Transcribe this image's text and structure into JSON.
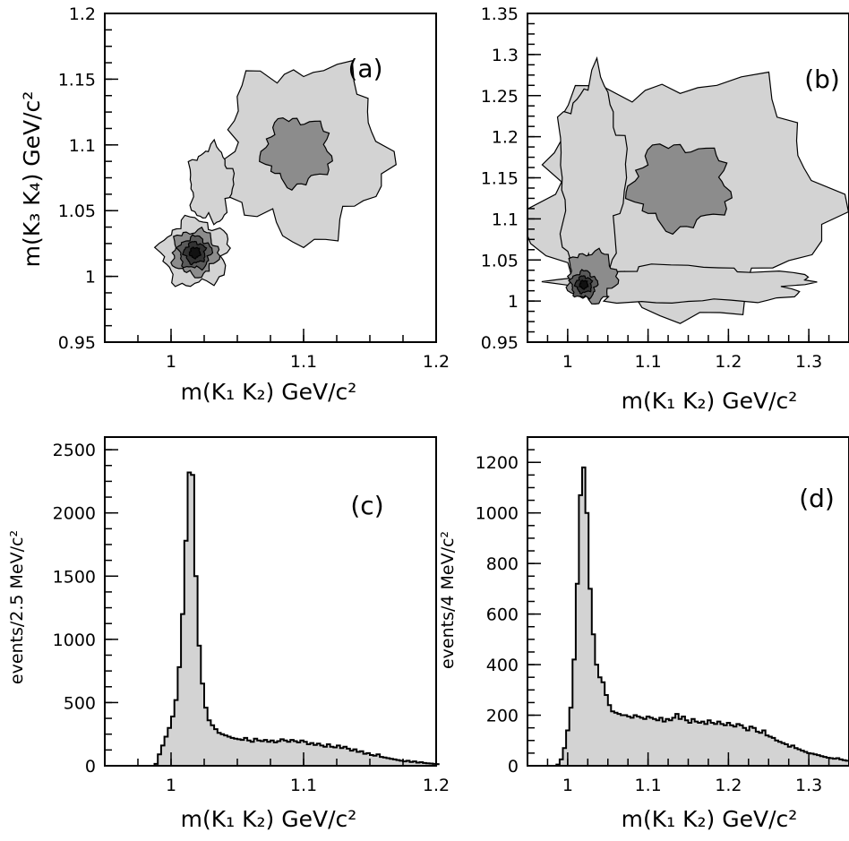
{
  "chart_data": [
    {
      "id": "a",
      "type": "contour",
      "tag": "(a)",
      "xlabel": "m(K₁ K₂) GeV/c²",
      "ylabel": "m(K₃ K₄) GeV/c²",
      "xlim": [
        0.95,
        1.2
      ],
      "ylim": [
        0.95,
        1.2
      ],
      "xticks": [
        1.0,
        1.1,
        1.2
      ],
      "xtick_labels": [
        "1",
        "1.1",
        "1.2"
      ],
      "yticks": [
        0.95,
        1.0,
        1.05,
        1.1,
        1.15,
        1.2
      ],
      "ytick_labels": [
        "0.95",
        "1",
        "1.05",
        "1.1",
        "1.15",
        "1.2"
      ],
      "xminor": 0.025,
      "yminor": 0.0125,
      "shading": [
        "#d3d3d3",
        "#8c8c8c",
        "#5a5a5a",
        "#333333",
        "#111111"
      ],
      "blobs": [
        {
          "cx": 1.1,
          "cy": 1.095,
          "rx": 0.06,
          "ry": 0.065,
          "level": 0
        },
        {
          "cx": 1.03,
          "cy": 1.07,
          "rx": 0.016,
          "ry": 0.028,
          "level": 0
        },
        {
          "cx": 1.018,
          "cy": 1.018,
          "rx": 0.025,
          "ry": 0.025,
          "level": 0
        },
        {
          "cx": 1.095,
          "cy": 1.095,
          "rx": 0.025,
          "ry": 0.025,
          "level": 1
        },
        {
          "cx": 1.018,
          "cy": 1.018,
          "rx": 0.017,
          "ry": 0.017,
          "level": 1
        },
        {
          "cx": 1.018,
          "cy": 1.018,
          "rx": 0.012,
          "ry": 0.012,
          "level": 2
        },
        {
          "cx": 1.018,
          "cy": 1.018,
          "rx": 0.008,
          "ry": 0.008,
          "level": 3
        },
        {
          "cx": 1.018,
          "cy": 1.018,
          "rx": 0.004,
          "ry": 0.004,
          "level": 4
        }
      ]
    },
    {
      "id": "b",
      "type": "contour",
      "tag": "(b)",
      "xlabel": "m(K₁ K₂) GeV/c²",
      "ylabel": "",
      "xlim": [
        0.95,
        1.35
      ],
      "ylim": [
        0.95,
        1.35
      ],
      "xticks": [
        1.0,
        1.1,
        1.2,
        1.3
      ],
      "xtick_labels": [
        "1",
        "1.1",
        "1.2",
        "1.3"
      ],
      "yticks": [
        0.95,
        1.0,
        1.05,
        1.1,
        1.15,
        1.2,
        1.25,
        1.3,
        1.35
      ],
      "ytick_labels": [
        "0.95",
        "1",
        "1.05",
        "1.1",
        "1.15",
        "1.2",
        "1.25",
        "1.3",
        "1.35"
      ],
      "xminor": 0.025,
      "yminor": 0.0125,
      "shading": [
        "#d3d3d3",
        "#8c8c8c",
        "#5a5a5a",
        "#333333",
        "#111111"
      ],
      "blobs": [
        {
          "cx": 1.14,
          "cy": 1.13,
          "rx": 0.18,
          "ry": 0.14,
          "level": 0
        },
        {
          "cx": 1.03,
          "cy": 1.15,
          "rx": 0.04,
          "ry": 0.12,
          "level": 0
        },
        {
          "cx": 1.15,
          "cy": 1.02,
          "rx": 0.15,
          "ry": 0.022,
          "level": 0
        },
        {
          "cx": 1.14,
          "cy": 1.14,
          "rx": 0.06,
          "ry": 0.05,
          "level": 1
        },
        {
          "cx": 1.03,
          "cy": 1.03,
          "rx": 0.03,
          "ry": 0.03,
          "level": 1
        },
        {
          "cx": 1.02,
          "cy": 1.02,
          "rx": 0.016,
          "ry": 0.016,
          "level": 2
        },
        {
          "cx": 1.02,
          "cy": 1.02,
          "rx": 0.01,
          "ry": 0.01,
          "level": 3
        },
        {
          "cx": 1.02,
          "cy": 1.02,
          "rx": 0.005,
          "ry": 0.005,
          "level": 4
        }
      ]
    },
    {
      "id": "c",
      "type": "histogram",
      "tag": "(c)",
      "xlabel": "m(K₁ K₂) GeV/c²",
      "ylabel": "events/2.5 MeV/c²",
      "xlim": [
        0.95,
        1.2
      ],
      "ylim": [
        0,
        2600
      ],
      "xticks": [
        1.0,
        1.1,
        1.2
      ],
      "xtick_labels": [
        "1",
        "1.1",
        "1.2"
      ],
      "yticks": [
        0,
        500,
        1000,
        1500,
        2000,
        2500
      ],
      "ytick_labels": [
        "0",
        "500",
        "1000",
        "1500",
        "2000",
        "2500"
      ],
      "xminor": 0.025,
      "yminor": 125,
      "fill": "#d3d3d3",
      "bin_start": 0.95,
      "bin_width": 0.0025,
      "counts": [
        0,
        0,
        0,
        0,
        0,
        0,
        0,
        0,
        0,
        0,
        0,
        0,
        0,
        0,
        0,
        15,
        90,
        160,
        230,
        300,
        390,
        520,
        780,
        1200,
        1780,
        2320,
        2300,
        1500,
        950,
        650,
        460,
        360,
        320,
        290,
        260,
        250,
        240,
        230,
        220,
        215,
        210,
        205,
        220,
        200,
        190,
        215,
        200,
        195,
        205,
        190,
        200,
        185,
        195,
        210,
        200,
        190,
        205,
        195,
        185,
        200,
        190,
        170,
        180,
        165,
        175,
        160,
        150,
        170,
        150,
        145,
        160,
        140,
        150,
        135,
        120,
        130,
        110,
        115,
        95,
        100,
        85,
        80,
        90,
        70,
        65,
        60,
        55,
        50,
        45,
        40,
        35,
        40,
        30,
        35,
        25,
        28,
        22,
        20,
        18,
        15,
        14,
        12
      ]
    },
    {
      "id": "d",
      "type": "histogram",
      "tag": "(d)",
      "xlabel": "m(K₁ K₂) GeV/c²",
      "ylabel": "events/4 MeV/c²",
      "xlim": [
        0.95,
        1.35
      ],
      "ylim": [
        0,
        1300
      ],
      "xticks": [
        1.0,
        1.1,
        1.2,
        1.3
      ],
      "xtick_labels": [
        "1",
        "1.1",
        "1.2",
        "1.3"
      ],
      "yticks": [
        0,
        200,
        400,
        600,
        800,
        1000,
        1200
      ],
      "ytick_labels": [
        "0",
        "200",
        "400",
        "600",
        "800",
        "1000",
        "1200"
      ],
      "xminor": 0.025,
      "yminor": 50,
      "fill": "#d3d3d3",
      "bin_start": 0.95,
      "bin_width": 0.004,
      "counts": [
        0,
        0,
        0,
        0,
        0,
        0,
        0,
        0,
        0,
        5,
        25,
        70,
        140,
        230,
        420,
        720,
        1070,
        1180,
        1000,
        700,
        520,
        400,
        350,
        330,
        280,
        240,
        215,
        210,
        205,
        200,
        200,
        195,
        190,
        200,
        195,
        190,
        185,
        195,
        190,
        185,
        180,
        190,
        175,
        185,
        180,
        190,
        205,
        185,
        195,
        180,
        170,
        185,
        175,
        170,
        175,
        165,
        180,
        170,
        165,
        175,
        165,
        160,
        170,
        160,
        155,
        165,
        160,
        150,
        140,
        155,
        150,
        135,
        130,
        140,
        120,
        115,
        110,
        100,
        95,
        90,
        85,
        75,
        80,
        70,
        65,
        60,
        55,
        50,
        48,
        45,
        42,
        38,
        35,
        32,
        30,
        28,
        30,
        25,
        22,
        20
      ]
    }
  ]
}
